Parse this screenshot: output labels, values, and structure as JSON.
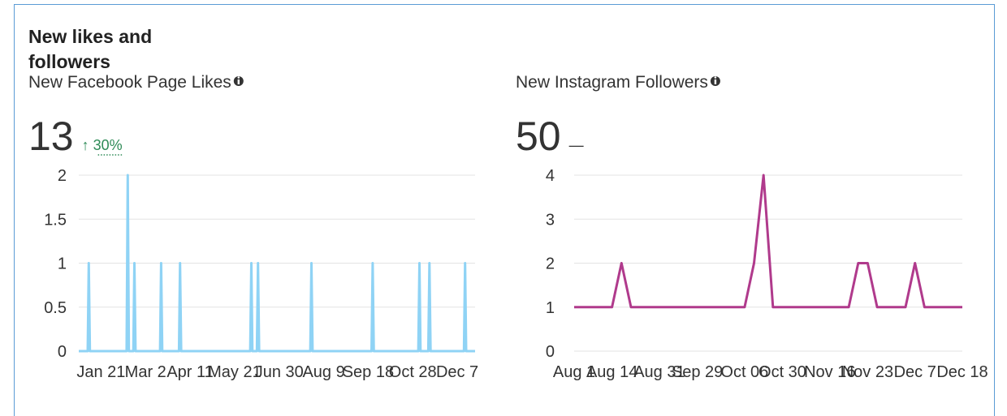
{
  "header": {
    "title": "New likes and followers"
  },
  "chart_data": [
    {
      "type": "line",
      "title": "New Facebook Page Likes",
      "total": 13,
      "change": "↑ 30%",
      "change_color": "#2e8b57",
      "x": [
        1,
        9,
        10,
        11,
        44,
        45,
        46,
        50,
        51,
        52,
        74,
        75,
        76,
        91,
        92,
        93,
        155,
        156,
        157,
        161,
        162,
        163,
        209,
        210,
        211,
        264,
        265,
        266,
        306,
        307,
        308,
        315,
        316,
        317,
        347,
        348,
        349,
        357
      ],
      "series": [
        {
          "color": "#8fd3f5",
          "values": [
            0,
            0,
            1,
            0,
            0,
            2,
            0,
            0,
            1,
            0,
            0,
            1,
            0,
            0,
            1,
            0,
            0,
            1,
            0,
            0,
            1,
            0,
            0,
            1,
            0,
            0,
            1,
            0,
            0,
            1,
            0,
            0,
            1,
            0,
            0,
            1,
            0,
            0
          ]
        }
      ],
      "xlim": [
        1,
        357
      ],
      "xticks": [
        {
          "value": 21,
          "label": "Jan 21"
        },
        {
          "value": 61,
          "label": "Mar 2"
        },
        {
          "value": 101,
          "label": "Apr 11"
        },
        {
          "value": 141,
          "label": "May 21"
        },
        {
          "value": 181,
          "label": "Jun 30"
        },
        {
          "value": 221,
          "label": "Aug 9"
        },
        {
          "value": 261,
          "label": "Sep 18"
        },
        {
          "value": 301,
          "label": "Oct 28"
        },
        {
          "value": 341,
          "label": "Dec 7"
        }
      ],
      "ylim": [
        0,
        2
      ],
      "yticks": [
        0,
        0.5,
        1,
        1.5,
        2
      ],
      "grid": true
    },
    {
      "type": "line",
      "title": "New Instagram Followers",
      "total": 50,
      "change": "—",
      "change_color": "#333333",
      "categories": [
        "Aug 1",
        null,
        null,
        null,
        "Aug 14",
        null,
        null,
        null,
        null,
        "Aug 31",
        null,
        null,
        null,
        "Sep 29",
        null,
        null,
        null,
        null,
        "Oct 06",
        null,
        null,
        null,
        "Oct 30",
        null,
        null,
        null,
        null,
        "Nov 16",
        null,
        null,
        null,
        "Nov 23",
        null,
        null,
        null,
        null,
        "Dec 7",
        null,
        null,
        null,
        null,
        "Dec 18"
      ],
      "series": [
        {
          "color": "#b03a8c",
          "values": [
            1,
            1,
            1,
            1,
            1,
            2,
            1,
            1,
            1,
            1,
            1,
            1,
            1,
            1,
            1,
            1,
            1,
            1,
            1,
            2,
            4,
            1,
            1,
            1,
            1,
            1,
            1,
            1,
            1,
            1,
            2,
            2,
            1,
            1,
            1,
            1,
            2,
            1,
            1,
            1,
            1,
            1
          ]
        }
      ],
      "ylim": [
        0,
        4
      ],
      "yticks": [
        0,
        1,
        2,
        3,
        4
      ],
      "grid": true
    }
  ]
}
